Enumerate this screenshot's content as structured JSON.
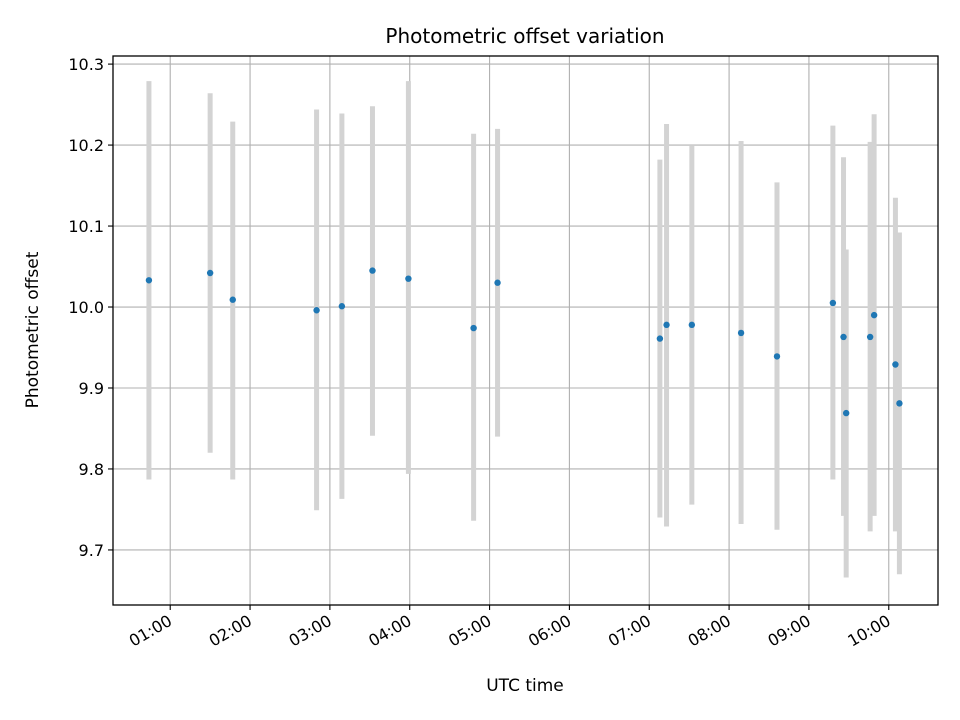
{
  "chart_data": {
    "type": "scatter",
    "title": "Photometric offset variation",
    "xlabel": "UTC time",
    "ylabel": "Photometric offset",
    "x_unit": "UTC time",
    "xlim": [
      "00:17",
      "10:37"
    ],
    "ylim": [
      9.632,
      10.31
    ],
    "x_ticks": [
      "01:00",
      "02:00",
      "03:00",
      "04:00",
      "05:00",
      "06:00",
      "07:00",
      "08:00",
      "09:00",
      "10:00"
    ],
    "y_ticks": [
      "9.7",
      "9.8",
      "9.9",
      "10.0",
      "10.1",
      "10.2",
      "10.3"
    ],
    "grid": true,
    "colors": {
      "marker": "#1f77b4",
      "errorbar": "#d3d3d3",
      "grid": "#b0b0b0"
    },
    "points": [
      {
        "x": "00:44",
        "y": 10.033,
        "ylow": 9.787,
        "yhigh": 10.279
      },
      {
        "x": "01:30",
        "y": 10.042,
        "ylow": 9.82,
        "yhigh": 10.264
      },
      {
        "x": "01:47",
        "y": 10.009,
        "ylow": 9.787,
        "yhigh": 10.229
      },
      {
        "x": "02:50",
        "y": 9.996,
        "ylow": 9.749,
        "yhigh": 10.244
      },
      {
        "x": "03:09",
        "y": 10.001,
        "ylow": 9.763,
        "yhigh": 10.239
      },
      {
        "x": "03:32",
        "y": 10.045,
        "ylow": 9.841,
        "yhigh": 10.248
      },
      {
        "x": "03:59",
        "y": 10.035,
        "ylow": 9.794,
        "yhigh": 10.279
      },
      {
        "x": "04:48",
        "y": 9.974,
        "ylow": 9.736,
        "yhigh": 10.214
      },
      {
        "x": "05:06",
        "y": 10.03,
        "ylow": 9.84,
        "yhigh": 10.22
      },
      {
        "x": "07:08",
        "y": 9.961,
        "ylow": 9.74,
        "yhigh": 10.182
      },
      {
        "x": "07:13",
        "y": 9.978,
        "ylow": 9.729,
        "yhigh": 10.226
      },
      {
        "x": "07:32",
        "y": 9.978,
        "ylow": 9.756,
        "yhigh": 10.2
      },
      {
        "x": "08:09",
        "y": 9.968,
        "ylow": 9.732,
        "yhigh": 10.205
      },
      {
        "x": "08:36",
        "y": 9.939,
        "ylow": 9.725,
        "yhigh": 10.154
      },
      {
        "x": "09:18",
        "y": 10.005,
        "ylow": 9.787,
        "yhigh": 10.224
      },
      {
        "x": "09:26",
        "y": 9.963,
        "ylow": 9.742,
        "yhigh": 10.185
      },
      {
        "x": "09:28",
        "y": 9.869,
        "ylow": 9.666,
        "yhigh": 10.071
      },
      {
        "x": "09:46",
        "y": 9.963,
        "ylow": 9.723,
        "yhigh": 10.204
      },
      {
        "x": "09:49",
        "y": 9.99,
        "ylow": 9.742,
        "yhigh": 10.238
      },
      {
        "x": "10:05",
        "y": 9.929,
        "ylow": 9.723,
        "yhigh": 10.135
      },
      {
        "x": "10:08",
        "y": 9.881,
        "ylow": 9.67,
        "yhigh": 10.092
      }
    ]
  }
}
